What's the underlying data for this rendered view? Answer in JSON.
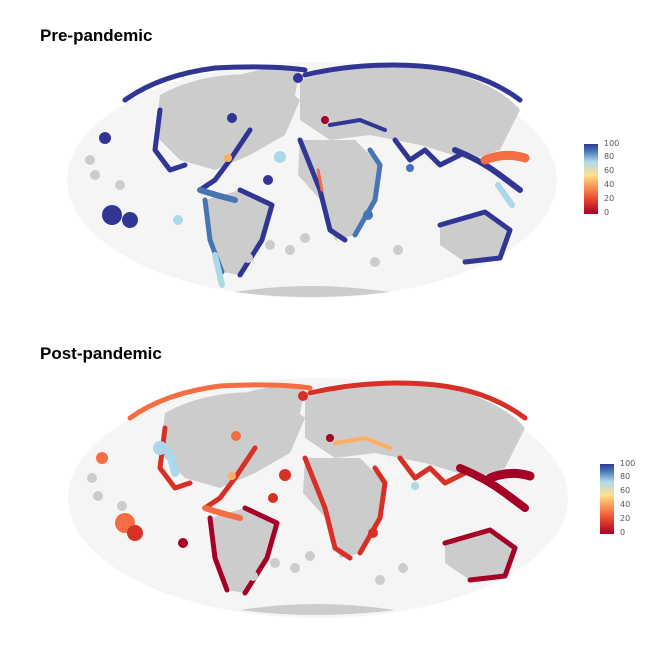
{
  "panels": [
    {
      "title": "Pre-pandemic"
    },
    {
      "title": "Post-pandemic"
    }
  ],
  "legend": {
    "ticks": [
      "100",
      "80",
      "60",
      "40",
      "20",
      "0"
    ],
    "colors": [
      "#313695",
      "#4575b4",
      "#abd9e9",
      "#fee090",
      "#fdae61",
      "#f46d43",
      "#d73027",
      "#a50026"
    ]
  }
}
